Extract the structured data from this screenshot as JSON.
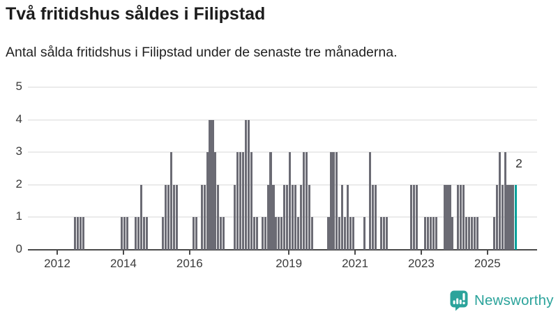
{
  "chart_data": {
    "type": "bar",
    "title": "Två fritidshus såldes i Filipstad",
    "subtitle": "Antal sålda fritidshus i Filipstad under de senaste tre månaderna.",
    "xlabel": "",
    "ylabel": "",
    "ylim": [
      0,
      5
    ],
    "grid": true,
    "y_ticks": [
      0,
      1,
      2,
      3,
      4,
      5
    ],
    "x_ticks": [
      2012,
      2014,
      2016,
      2019,
      2021,
      2023,
      2025
    ],
    "start": "2011-03",
    "frequency": "monthly",
    "values": [
      0,
      0,
      0,
      0,
      0,
      0,
      0,
      0,
      0,
      0,
      0,
      0,
      0,
      0,
      0,
      0,
      1,
      1,
      1,
      1,
      0,
      0,
      0,
      0,
      0,
      0,
      0,
      0,
      0,
      0,
      0,
      0,
      0,
      1,
      1,
      1,
      0,
      0,
      1,
      1,
      2,
      1,
      1,
      0,
      0,
      0,
      0,
      0,
      1,
      2,
      2,
      3,
      2,
      2,
      0,
      0,
      0,
      0,
      0,
      1,
      1,
      0,
      2,
      2,
      3,
      4,
      4,
      3,
      2,
      1,
      1,
      0,
      0,
      0,
      2,
      3,
      3,
      3,
      4,
      4,
      3,
      1,
      1,
      0,
      1,
      1,
      2,
      3,
      2,
      1,
      1,
      1,
      2,
      2,
      3,
      2,
      2,
      1,
      2,
      3,
      3,
      2,
      1,
      0,
      0,
      0,
      0,
      0,
      1,
      3,
      3,
      3,
      1,
      2,
      1,
      2,
      1,
      1,
      0,
      0,
      0,
      1,
      0,
      3,
      2,
      2,
      0,
      1,
      1,
      1,
      0,
      0,
      0,
      0,
      0,
      0,
      0,
      0,
      2,
      2,
      2,
      0,
      0,
      1,
      1,
      1,
      1,
      1,
      0,
      0,
      2,
      2,
      2,
      1,
      0,
      2,
      2,
      2,
      1,
      1,
      1,
      1,
      1,
      0,
      0,
      0,
      0,
      0,
      1,
      2,
      3,
      2,
      3,
      2,
      2,
      2,
      2
    ],
    "highlight_last": true,
    "annotation": {
      "text": "2"
    },
    "colors": {
      "bar": "#6b6b74",
      "highlight": "#00a09a",
      "grid": "#ebebeb",
      "axis": "#4a4a4a"
    },
    "legend": null
  },
  "footer": {
    "brand": "Newsworthy",
    "brand_color": "#2ba39b"
  }
}
